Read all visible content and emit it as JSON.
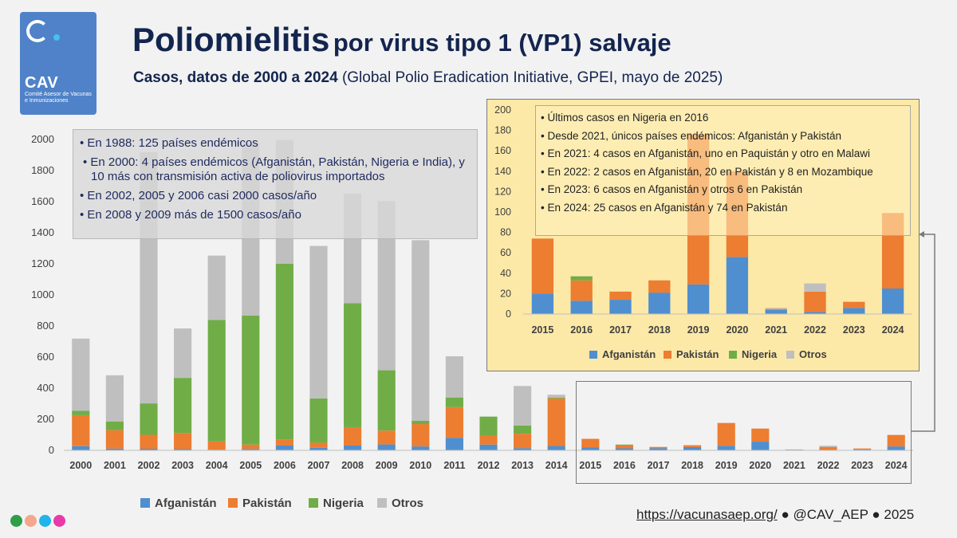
{
  "header": {
    "title_main": "Poliomielitis",
    "title_rest": "por virus tipo 1 (VP1) salvaje",
    "subtitle_bold": "Casos, datos de 2000 a 2024",
    "subtitle_rest": "(Global Polio Eradication Initiative, GPEI, mayo de 2025)"
  },
  "logo": {
    "brand": "CAV",
    "subtitle": "Comité Asesor de Vacunas e Inmunizaciones"
  },
  "notes_main": [
    "En 1988: 125 países endémicos",
    "En 2000: 4 países endémicos (Afganistán, Pakistán, Nigeria e India), y 10 más con transmisión activa de poliovirus importados",
    "En 2002, 2005 y 2006 casi 2000 casos/año",
    "En 2008 y 2009 más de 1500 casos/año"
  ],
  "notes_inset": [
    "Últimos casos en Nigeria en 2016",
    "Desde 2021, únicos países endémicos: Afganistán y Pakistán",
    "En 2021: 4 casos en Afganistán, uno en Paquistán y otro en Malawi",
    "En 2022: 2 casos en Afganistán, 20 en Pakistán y 8 en Mozambique",
    "En 2023: 6 casos en Afganistán y otros 6 en Pakistán",
    "En 2024: 25 casos en Afganistán y 74 en Pakistán"
  ],
  "footer": {
    "url": "https://vacunasaep.org/",
    "sep1": "●",
    "handle": "@CAV_AEP",
    "sep2": "●",
    "year": "2025"
  },
  "colors": {
    "afganistan": "#4f8fd0",
    "pakistan": "#ed7d31",
    "nigeria": "#70ad47",
    "otros": "#bfbfbf",
    "title": "#13254f",
    "dots": [
      "#2e9e48",
      "#f5a68c",
      "#1fb5e8",
      "#e83aa8"
    ]
  },
  "chart_data": [
    {
      "type": "bar",
      "stacked": true,
      "title": "",
      "xlabel": "",
      "ylabel": "",
      "ylim": [
        0,
        2000
      ],
      "yticks": [
        0,
        200,
        400,
        600,
        800,
        1000,
        1200,
        1400,
        1600,
        1800,
        2000
      ],
      "grid": false,
      "legend": "bottom",
      "categories": [
        "2000",
        "2001",
        "2002",
        "2003",
        "2004",
        "2005",
        "2006",
        "2007",
        "2008",
        "2009",
        "2010",
        "2011",
        "2012",
        "2013",
        "2014",
        "2015",
        "2016",
        "2017",
        "2018",
        "2019",
        "2020",
        "2021",
        "2022",
        "2023",
        "2024"
      ],
      "series": [
        {
          "name": "Afganistán",
          "values": [
            27,
            11,
            10,
            8,
            4,
            9,
            31,
            17,
            31,
            38,
            25,
            80,
            37,
            14,
            28,
            20,
            13,
            14,
            21,
            29,
            56,
            4,
            2,
            6,
            25
          ]
        },
        {
          "name": "Pakistán",
          "values": [
            199,
            119,
            90,
            103,
            53,
            28,
            40,
            32,
            118,
            89,
            144,
            198,
            58,
            93,
            306,
            54,
            20,
            8,
            12,
            147,
            84,
            1,
            20,
            6,
            74
          ]
        },
        {
          "name": "Nigeria",
          "values": [
            28,
            56,
            202,
            355,
            782,
            830,
            1129,
            285,
            798,
            388,
            21,
            62,
            122,
            53,
            6,
            0,
            4,
            0,
            0,
            0,
            0,
            0,
            0,
            0,
            0
          ]
        },
        {
          "name": "Otros",
          "values": [
            465,
            297,
            1616,
            318,
            414,
            1112,
            797,
            981,
            704,
            1089,
            1162,
            265,
            0,
            254,
            18,
            0,
            0,
            0,
            0,
            0,
            0,
            1,
            8,
            0,
            0
          ]
        }
      ]
    },
    {
      "type": "bar",
      "stacked": true,
      "title": "",
      "xlabel": "",
      "ylabel": "",
      "ylim": [
        0,
        200
      ],
      "yticks": [
        0,
        20,
        40,
        60,
        80,
        100,
        120,
        140,
        160,
        180,
        200
      ],
      "grid": false,
      "legend": "bottom",
      "categories": [
        "2015",
        "2016",
        "2017",
        "2018",
        "2019",
        "2020",
        "2021",
        "2022",
        "2023",
        "2024"
      ],
      "series": [
        {
          "name": "Afganistán",
          "values": [
            20,
            13,
            14,
            21,
            29,
            56,
            4,
            2,
            6,
            25
          ]
        },
        {
          "name": "Pakistán",
          "values": [
            54,
            20,
            8,
            12,
            147,
            84,
            1,
            20,
            6,
            74
          ]
        },
        {
          "name": "Nigeria",
          "values": [
            0,
            4,
            0,
            0,
            0,
            0,
            0,
            0,
            0,
            0
          ]
        },
        {
          "name": "Otros",
          "values": [
            0,
            0,
            0,
            0,
            0,
            0,
            1,
            8,
            0,
            0
          ]
        }
      ]
    }
  ]
}
